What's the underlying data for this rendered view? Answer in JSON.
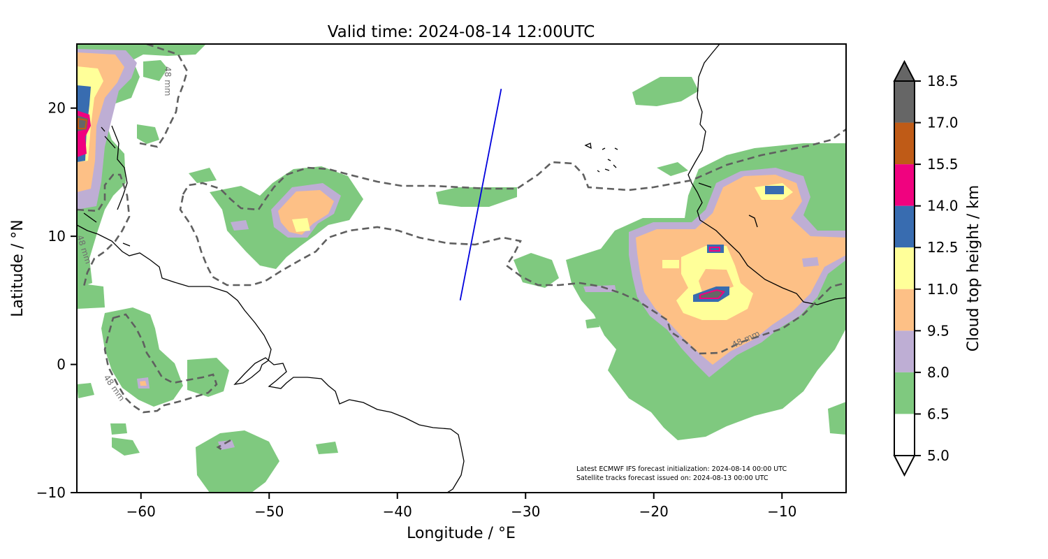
{
  "title": "Valid time: 2024-08-14 12:00UTC",
  "xlabel": "Longitude / °E",
  "ylabel": "Latitude / °N",
  "map": {
    "lon_range": [
      -65,
      -5
    ],
    "lat_range": [
      -10,
      25
    ],
    "x_ticks": [
      {
        "value": -60,
        "label": "−60"
      },
      {
        "value": -50,
        "label": "−50"
      },
      {
        "value": -40,
        "label": "−40"
      },
      {
        "value": -30,
        "label": "−30"
      },
      {
        "value": -20,
        "label": "−20"
      },
      {
        "value": -10,
        "label": "−10"
      }
    ],
    "y_ticks": [
      {
        "value": 20,
        "label": "20"
      },
      {
        "value": 10,
        "label": "10"
      },
      {
        "value": 0,
        "label": "0"
      },
      {
        "value": -10,
        "label": "−10"
      }
    ],
    "contour_label": "48 mm",
    "satellite_track": [
      [
        -35.1,
        5.0
      ],
      [
        -31.9,
        21.5
      ]
    ],
    "track_color": "#0000dd",
    "contour_color": "#5f5f5f",
    "coast_color": "#000000"
  },
  "colorbar": {
    "label": "Cloud top height / km",
    "ticks": [
      "18.5",
      "17.0",
      "15.5",
      "14.0",
      "12.5",
      "11.0",
      "9.5",
      "8.0",
      "6.5",
      "5.0"
    ],
    "bins": [
      {
        "from": 17.0,
        "to": 18.5,
        "color": "#666666"
      },
      {
        "from": 15.5,
        "to": 17.0,
        "color": "#bf5b17"
      },
      {
        "from": 14.0,
        "to": 15.5,
        "color": "#f0027f"
      },
      {
        "from": 12.5,
        "to": 14.0,
        "color": "#386cb0"
      },
      {
        "from": 11.0,
        "to": 12.5,
        "color": "#ffff99"
      },
      {
        "from": 9.5,
        "to": 11.0,
        "color": "#fdc086"
      },
      {
        "from": 8.0,
        "to": 9.5,
        "color": "#beaed4"
      },
      {
        "from": 6.5,
        "to": 8.0,
        "color": "#7fc97f"
      },
      {
        "from": 5.0,
        "to": 6.5,
        "color": "#ffffff"
      }
    ],
    "extend": "both"
  },
  "notes": {
    "line1": "Latest ECMWF IFS forecast initialization: 2024-08-14 00:00 UTC",
    "line2": "Satellite tracks forecast issued on: 2024-08-13 00:00 UTC"
  }
}
